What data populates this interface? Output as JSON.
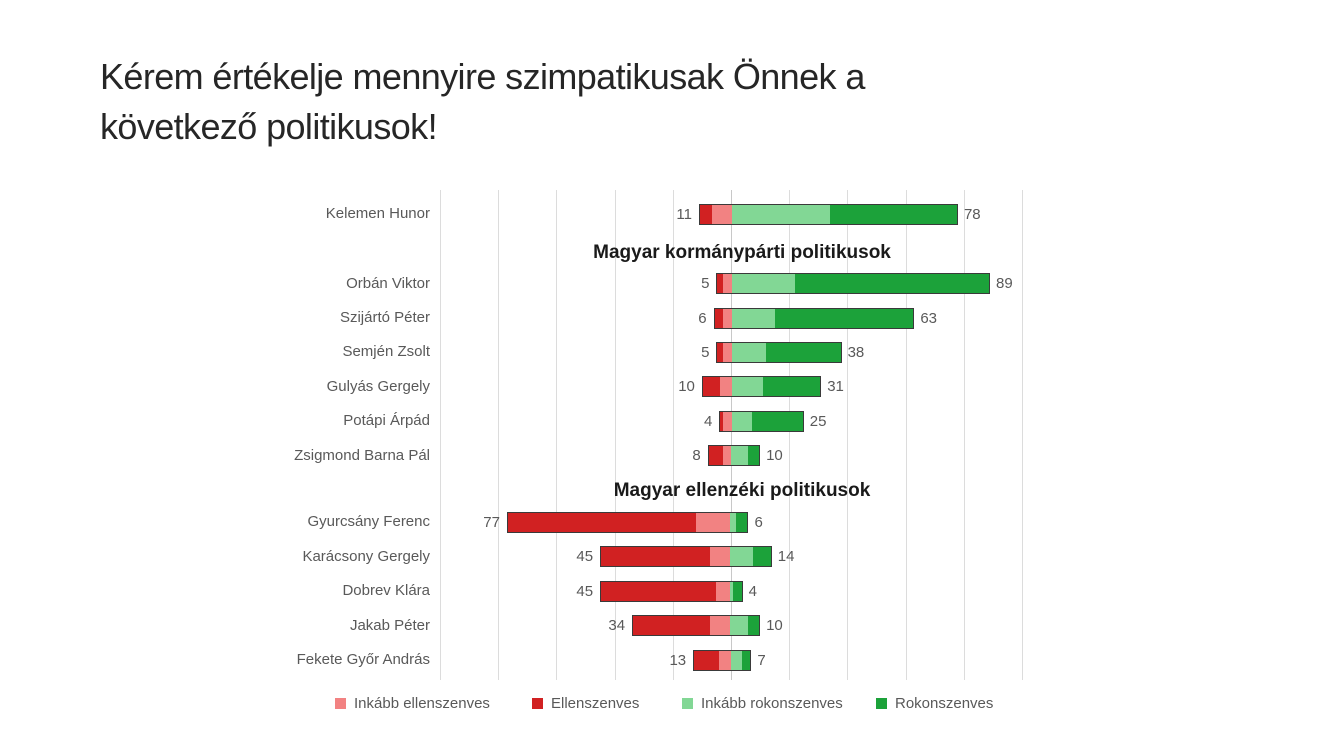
{
  "slide": {
    "title": "Kérem értékelje mennyire szimpatikusak Önnek a következő politikusok!"
  },
  "chart_data": {
    "type": "bar",
    "variant": "diverging-stacked-horizontal",
    "title": "Kérem értékelje mennyire szimpatikusak Önnek a következő politikusok!",
    "axis": {
      "xmin": -100,
      "xmax": 100,
      "gridline_step": 20,
      "grid": true,
      "tick_labels_shown": false
    },
    "colors": {
      "inkabb_ellenszenves": "#F28282",
      "ellenszenves": "#D12122",
      "inkabb_rokonszenves": "#82D795",
      "rokonszenves": "#1CA23A",
      "bar_border": "#3A3A3A",
      "grid": "#DCDCDC",
      "center_line": "#C8C8C8",
      "label_text": "#595959",
      "header_text": "#1A1A1A",
      "title_text": "#262626"
    },
    "legend": {
      "position": "bottom",
      "items": [
        {
          "key": "inkabb_ellenszenves",
          "label": "Inkább ellenszenves"
        },
        {
          "key": "ellenszenves",
          "label": "Ellenszenves"
        },
        {
          "key": "inkabb_rokonszenves",
          "label": "Inkább rokonszenves"
        },
        {
          "key": "rokonszenves",
          "label": "Rokonszenves"
        }
      ]
    },
    "sections": [
      {
        "header": "",
        "rows": [
          {
            "name": "Kelemen Hunor",
            "neg_label": 11,
            "pos_label": 78,
            "ellenszenves": 4,
            "inkabb_ellenszenves": 7,
            "inkabb_rokonszenves": 34,
            "rokonszenves": 44
          }
        ]
      },
      {
        "header": "Magyar kormánypárti politikusok",
        "rows": [
          {
            "name": "Orbán Viktor",
            "neg_label": 5,
            "pos_label": 89,
            "ellenszenves": 2,
            "inkabb_ellenszenves": 3,
            "inkabb_rokonszenves": 22,
            "rokonszenves": 67
          },
          {
            "name": "Szijártó Péter",
            "neg_label": 6,
            "pos_label": 63,
            "ellenszenves": 3,
            "inkabb_ellenszenves": 3,
            "inkabb_rokonszenves": 15,
            "rokonszenves": 48
          },
          {
            "name": "Semjén Zsolt",
            "neg_label": 5,
            "pos_label": 38,
            "ellenszenves": 2,
            "inkabb_ellenszenves": 3,
            "inkabb_rokonszenves": 12,
            "rokonszenves": 26
          },
          {
            "name": "Gulyás Gergely",
            "neg_label": 10,
            "pos_label": 31,
            "ellenszenves": 6,
            "inkabb_ellenszenves": 4,
            "inkabb_rokonszenves": 11,
            "rokonszenves": 20
          },
          {
            "name": "Potápi Árpád",
            "neg_label": 4,
            "pos_label": 25,
            "ellenszenves": 1,
            "inkabb_ellenszenves": 3,
            "inkabb_rokonszenves": 7,
            "rokonszenves": 18
          },
          {
            "name": "Zsigmond Barna Pál",
            "neg_label": 8,
            "pos_label": 10,
            "ellenszenves": 5,
            "inkabb_ellenszenves": 3,
            "inkabb_rokonszenves": 6,
            "rokonszenves": 4
          }
        ]
      },
      {
        "header": "Magyar ellenzéki politikusok",
        "rows": [
          {
            "name": "Gyurcsány Ferenc",
            "neg_label": 77,
            "pos_label": 6,
            "ellenszenves": 65,
            "inkabb_ellenszenves": 12,
            "inkabb_rokonszenves": 2,
            "rokonszenves": 4
          },
          {
            "name": "Karácsony Gergely",
            "neg_label": 45,
            "pos_label": 14,
            "ellenszenves": 38,
            "inkabb_ellenszenves": 7,
            "inkabb_rokonszenves": 8,
            "rokonszenves": 6
          },
          {
            "name": "Dobrev Klára",
            "neg_label": 45,
            "pos_label": 4,
            "ellenszenves": 40,
            "inkabb_ellenszenves": 5,
            "inkabb_rokonszenves": 1,
            "rokonszenves": 3
          },
          {
            "name": "Jakab Péter",
            "neg_label": 34,
            "pos_label": 10,
            "ellenszenves": 27,
            "inkabb_ellenszenves": 7,
            "inkabb_rokonszenves": 6,
            "rokonszenves": 4
          },
          {
            "name": "Fekete Győr András",
            "neg_label": 13,
            "pos_label": 7,
            "ellenszenves": 9,
            "inkabb_ellenszenves": 4,
            "inkabb_rokonszenves": 4,
            "rokonszenves": 3
          }
        ]
      }
    ]
  }
}
